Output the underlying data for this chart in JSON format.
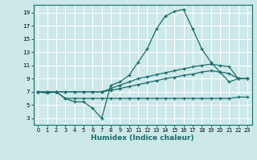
{
  "xlabel": "Humidex (Indice chaleur)",
  "bg_color": "#cce8e8",
  "grid_color": "#ffffff",
  "line_color": "#1a6b6b",
  "xlim": [
    -0.5,
    23.5
  ],
  "ylim": [
    2.0,
    20.2
  ],
  "xticks": [
    0,
    1,
    2,
    3,
    4,
    5,
    6,
    7,
    8,
    9,
    10,
    11,
    12,
    13,
    14,
    15,
    16,
    17,
    18,
    19,
    20,
    21,
    22,
    23
  ],
  "yticks": [
    3,
    5,
    7,
    9,
    11,
    13,
    15,
    17,
    19
  ],
  "series": [
    {
      "x": [
        0,
        1,
        2,
        3,
        4,
        5,
        6,
        7,
        8,
        9,
        10,
        11,
        12,
        13,
        14,
        15,
        16,
        17,
        18,
        19,
        20,
        21,
        22,
        23
      ],
      "y": [
        7,
        6.8,
        7,
        6.0,
        5.5,
        5.5,
        4.5,
        3.0,
        8.0,
        8.5,
        9.5,
        11.5,
        13.5,
        16.5,
        18.5,
        19.2,
        19.5,
        16.5,
        13.5,
        11.5,
        10.0,
        8.5,
        9.0,
        9.0
      ]
    },
    {
      "x": [
        0,
        1,
        2,
        3,
        4,
        5,
        6,
        7,
        8,
        9,
        10,
        11,
        12,
        13,
        14,
        15,
        16,
        17,
        18,
        19,
        20,
        21,
        22,
        23
      ],
      "y": [
        7,
        7,
        7,
        7,
        7,
        7,
        7,
        7,
        7.5,
        8.0,
        8.5,
        9.0,
        9.3,
        9.6,
        9.9,
        10.2,
        10.5,
        10.8,
        11.0,
        11.2,
        11.0,
        10.8,
        9.0,
        9.0
      ]
    },
    {
      "x": [
        0,
        1,
        2,
        3,
        4,
        5,
        6,
        7,
        8,
        9,
        10,
        11,
        12,
        13,
        14,
        15,
        16,
        17,
        18,
        19,
        20,
        21,
        22,
        23
      ],
      "y": [
        7,
        7,
        7,
        7,
        7,
        7,
        7,
        7,
        7.2,
        7.5,
        7.8,
        8.1,
        8.4,
        8.7,
        9.0,
        9.2,
        9.5,
        9.7,
        10.0,
        10.2,
        10.0,
        9.8,
        9.0,
        9.0
      ]
    },
    {
      "x": [
        0,
        1,
        2,
        3,
        4,
        5,
        6,
        7,
        8,
        9,
        10,
        11,
        12,
        13,
        14,
        15,
        16,
        17,
        18,
        19,
        20,
        21,
        22,
        23
      ],
      "y": [
        7,
        7,
        7,
        6,
        6,
        6,
        6,
        6,
        6,
        6,
        6,
        6,
        6,
        6,
        6,
        6,
        6,
        6,
        6,
        6,
        6,
        6,
        6.2,
        6.2
      ]
    }
  ]
}
